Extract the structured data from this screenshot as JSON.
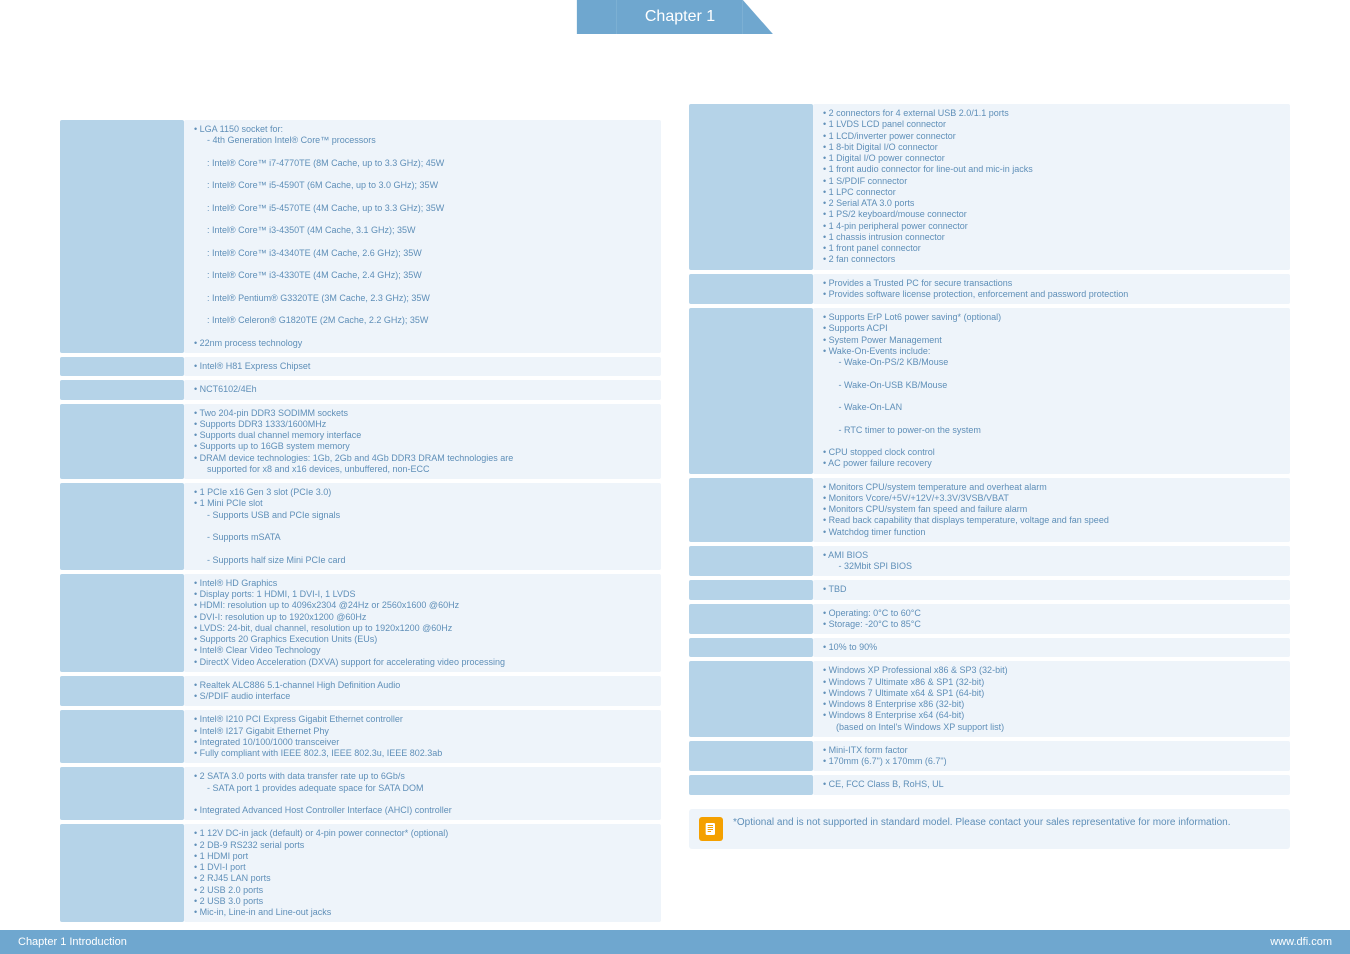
{
  "chapter_tab": "Chapter 1",
  "footer_left": "Chapter 1 Introduction",
  "footer_right": "www.dfi.com",
  "note_text": "*Optional and is not supported in standard model. Please contact your sales representative for more information.",
  "colors": {
    "accent": "#6fa7cf",
    "row_label_bg": "#b5d3e8",
    "row_value_bg": "#eef4fa",
    "text": "#5f8fb8",
    "note_icon_bg": "#f4a000"
  },
  "left_rows": [
    {
      "lines": [
        "• LGA 1150 socket for:",
        "  - 4th Generation Intel® Core™ processors",
        "  : Intel® Core™ i7-4770TE (8M Cache, up to 3.3 GHz); 45W",
        "  : Intel® Core™ i5-4590T (6M Cache, up to 3.0 GHz); 35W",
        "  : Intel® Core™ i5-4570TE (4M Cache, up to 3.3 GHz); 35W",
        "  : Intel® Core™ i3-4350T (4M Cache, 3.1 GHz); 35W",
        "  : Intel® Core™ i3-4340TE (4M Cache, 2.6 GHz); 35W",
        "  : Intel® Core™ i3-4330TE (4M Cache, 2.4 GHz); 35W",
        "  : Intel® Pentium® G3320TE (3M Cache, 2.3 GHz); 35W",
        "  : Intel® Celeron® G1820TE (2M Cache, 2.2 GHz); 35W",
        "• 22nm process technology"
      ]
    },
    {
      "lines": [
        "• Intel® H81 Express Chipset"
      ]
    },
    {
      "lines": [
        "• NCT6102/4Eh"
      ]
    },
    {
      "lines": [
        "• Two 204-pin DDR3 SODIMM sockets",
        "• Supports DDR3 1333/1600MHz",
        "• Supports dual channel memory interface",
        "• Supports up to 16GB system memory",
        "• DRAM device technologies: 1Gb, 2Gb and 4Gb DDR3 DRAM technologies are",
        "  supported for x8 and x16 devices, unbuffered, non-ECC"
      ]
    },
    {
      "lines": [
        "• 1 PCIe x16 Gen 3 slot (PCIe 3.0)",
        "• 1 Mini PCIe slot",
        "  - Supports USB and PCIe signals",
        "  - Supports mSATA",
        "  - Supports half size Mini PCIe card"
      ]
    },
    {
      "lines": [
        "• Intel® HD Graphics",
        "• Display ports: 1 HDMI, 1 DVI-I, 1 LVDS",
        "• HDMI: resolution up to 4096x2304 @24Hz or 2560x1600 @60Hz",
        "• DVI-I: resolution up to 1920x1200 @60Hz",
        "• LVDS: 24-bit, dual channel, resolution up to 1920x1200 @60Hz",
        "• Supports 20 Graphics Execution Units (EUs)",
        "• Intel® Clear Video Technology",
        "• DirectX Video Acceleration (DXVA) support for accelerating video processing"
      ]
    },
    {
      "lines": [
        "• Realtek ALC886 5.1-channel High Definition Audio",
        "• S/PDIF audio interface"
      ]
    },
    {
      "lines": [
        "• Intel® I210 PCI Express Gigabit Ethernet controller",
        "• Intel® I217 Gigabit Ethernet Phy",
        "• Integrated 10/100/1000 transceiver",
        "• Fully compliant with IEEE 802.3, IEEE 802.3u, IEEE 802.3ab"
      ]
    },
    {
      "lines": [
        "• 2 SATA 3.0 ports with data transfer rate up to 6Gb/s",
        "  - SATA port 1 provides adequate space for SATA DOM",
        "• Integrated Advanced Host Controller Interface (AHCI) controller"
      ]
    },
    {
      "lines": [
        "• 1 12V DC-in jack (default) or 4-pin power connector* (optional)",
        "• 2 DB-9 RS232 serial ports",
        "• 1 HDMI port",
        "• 1 DVI-I port",
        "• 2 RJ45 LAN ports",
        "• 2 USB 2.0 ports",
        "• 2 USB 3.0 ports",
        "• Mic-in, Line-in and Line-out jacks"
      ]
    }
  ],
  "right_rows": [
    {
      "lines": [
        "• 2 connectors for 4 external USB 2.0/1.1 ports",
        "• 1 LVDS LCD panel connector",
        "• 1 LCD/inverter power connector",
        "• 1 8-bit Digital I/O connector",
        "• 1 Digital I/O power connector",
        "• 1 front audio connector for line-out and mic-in jacks",
        "• 1 S/PDIF connector",
        "• 1 LPC connector",
        "• 2 Serial ATA 3.0 ports",
        "• 1 PS/2 keyboard/mouse connector",
        "• 1 4-pin peripheral power connector",
        "• 1 chassis intrusion connector",
        "• 1 front panel connector",
        "• 2 fan connectors"
      ]
    },
    {
      "lines": [
        "• Provides a Trusted PC for secure transactions",
        "• Provides software license protection, enforcement and password protection"
      ]
    },
    {
      "lines": [
        "• Supports ErP Lot6 power saving* (optional)",
        "• Supports ACPI",
        "• System Power Management",
        "• Wake-On-Events include:",
        "   - Wake-On-PS/2 KB/Mouse",
        "   - Wake-On-USB KB/Mouse",
        "   - Wake-On-LAN",
        "   - RTC timer to power-on the system",
        "• CPU stopped clock control",
        "• AC power failure recovery"
      ]
    },
    {
      "lines": [
        "• Monitors CPU/system temperature and overheat alarm",
        "• Monitors Vcore/+5V/+12V/+3.3V/3VSB/VBAT",
        "• Monitors CPU/system fan speed and failure alarm",
        "• Read back capability that displays temperature, voltage and fan speed",
        "• Watchdog timer function"
      ]
    },
    {
      "lines": [
        "• AMI BIOS",
        "   - 32Mbit SPI BIOS"
      ]
    },
    {
      "lines": [
        "• TBD"
      ]
    },
    {
      "lines": [
        "• Operating: 0°C to 60°C",
        "• Storage: -20°C to 85°C"
      ]
    },
    {
      "lines": [
        "• 10% to 90%"
      ]
    },
    {
      "lines": [
        "• Windows XP Professional x86 & SP3 (32-bit)",
        "• Windows 7 Ultimate x86 & SP1 (32-bit)",
        "• Windows 7 Ultimate x64 & SP1 (64-bit)",
        "• Windows 8 Enterprise x86 (32-bit)",
        "• Windows 8 Enterprise x64 (64-bit)",
        "  (based on Intel's Windows XP support list)"
      ]
    },
    {
      "lines": [
        "• Mini-ITX form factor",
        "• 170mm (6.7\") x 170mm (6.7\")"
      ]
    },
    {
      "lines": [
        "• CE, FCC Class B, RoHS, UL"
      ]
    }
  ]
}
